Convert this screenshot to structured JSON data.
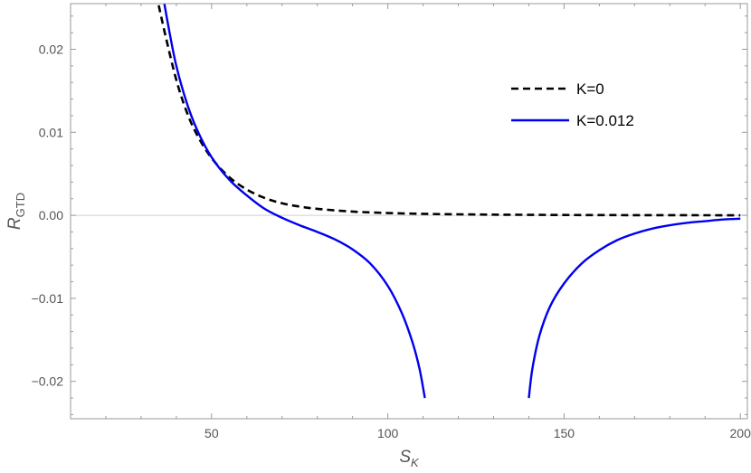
{
  "chart_data": {
    "type": "line",
    "title": "",
    "xlabel": {
      "base": "S",
      "sub": "K"
    },
    "ylabel": {
      "base": "R",
      "sub": "GTD"
    },
    "xlim": [
      10,
      202
    ],
    "ylim": [
      -0.0245,
      0.0255
    ],
    "xticks": [
      50,
      100,
      150,
      200
    ],
    "xtick_labels": [
      "50",
      "100",
      "150",
      "200"
    ],
    "yticks": [
      -0.02,
      -0.01,
      0.0,
      0.01,
      0.02
    ],
    "ytick_labels": [
      "−0.02",
      "−0.01",
      "0.00",
      "0.01",
      "0.02"
    ],
    "grid": false,
    "legend_position": "top-right",
    "series": [
      {
        "name": "K=0",
        "color": "#000000",
        "dash": "dashed",
        "x": [
          35,
          37,
          40,
          43,
          46,
          50,
          55,
          60,
          65,
          70,
          75,
          80,
          90,
          100,
          110,
          120,
          130,
          140,
          150,
          160,
          170,
          180,
          190,
          200
        ],
        "y": [
          0.0253,
          0.0215,
          0.0163,
          0.0124,
          0.0096,
          0.0069,
          0.0046,
          0.0031,
          0.0021,
          0.00145,
          0.00105,
          0.00078,
          0.00045,
          0.00028,
          0.00018,
          0.00012,
          8e-05,
          6e-05,
          4e-05,
          3e-05,
          2e-05,
          1.5e-05,
          1e-05,
          5e-06
        ]
      },
      {
        "name": "K=0.012",
        "color": "#0000ee",
        "dash": "solid",
        "segments": [
          {
            "x": [
              36.6,
              38,
              40,
              43,
              46,
              50,
              55,
              60,
              65,
              70,
              75,
              80,
              85,
              90,
              95,
              100,
              104,
              107,
              109,
              110.5
            ],
            "y": [
              0.0255,
              0.0222,
              0.018,
              0.0135,
              0.0102,
              0.007,
              0.0043,
              0.0024,
              0.0008,
              -0.0003,
              -0.0012,
              -0.002,
              -0.0029,
              -0.0041,
              -0.0058,
              -0.0085,
              -0.0118,
              -0.0153,
              -0.0185,
              -0.022
            ]
          },
          {
            "x": [
              140,
              141,
              143,
              146,
              150,
              155,
              160,
              165,
              170,
              175,
              180,
              185,
              190,
              195,
              200
            ],
            "y": [
              -0.022,
              -0.0185,
              -0.0145,
              -0.011,
              -0.0082,
              -0.0058,
              -0.0042,
              -0.003,
              -0.0022,
              -0.0016,
              -0.0012,
              -0.0009,
              -0.0007,
              -0.0005,
              -0.0004
            ]
          }
        ]
      }
    ]
  }
}
